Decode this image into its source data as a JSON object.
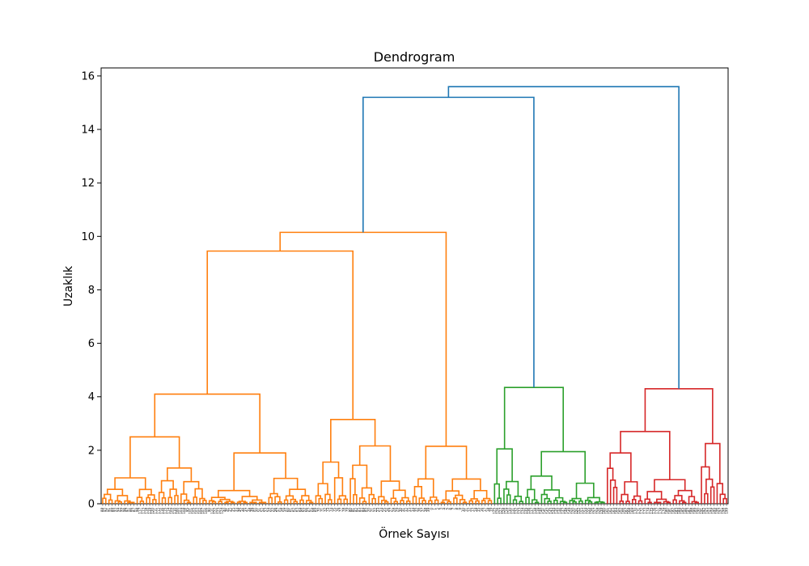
{
  "chart_data": {
    "type": "dendrogram",
    "title": "Dendrogram",
    "xlabel": "Örnek Sayısı",
    "ylabel": "Uzaklık",
    "ylim": [
      0,
      16.3
    ],
    "yticks": [
      0,
      2,
      4,
      6,
      8,
      10,
      12,
      14,
      16
    ],
    "grid": false,
    "leaf_count": 200,
    "colors": {
      "orange": "#ff7f0e",
      "green": "#2ca02c",
      "red": "#d62728",
      "blue": "#1f77b4"
    },
    "clusters": [
      {
        "name": "orange",
        "leaf_range": [
          0,
          124
        ]
      },
      {
        "name": "green",
        "leaf_range": [
          125,
          160
        ]
      },
      {
        "name": "red",
        "leaf_range": [
          161,
          199
        ]
      }
    ],
    "top_merges": [
      {
        "color": "blue",
        "height": 15.6,
        "joins": [
          "orange+green",
          "red"
        ]
      },
      {
        "color": "blue",
        "height": 15.2,
        "joins": [
          "orange",
          "green"
        ]
      },
      {
        "color": "orange",
        "height": 10.15,
        "joins": [
          "orange-left",
          "orange-right"
        ]
      },
      {
        "color": "orange",
        "height": 9.45,
        "joins": [
          "orange-left-a",
          "orange-left-b"
        ]
      },
      {
        "color": "red",
        "height": 4.3,
        "joins": [
          "red-a",
          "red-b"
        ]
      },
      {
        "color": "green",
        "height": 4.35,
        "joins": [
          "green-a",
          "green-b"
        ]
      },
      {
        "color": "orange",
        "height": 4.1,
        "joins": [
          "orange-left-a1",
          "orange-left-a2"
        ]
      },
      {
        "color": "orange",
        "height": 3.15,
        "joins": [
          "orange-mid-a",
          "orange-mid-b"
        ]
      },
      {
        "color": "red",
        "height": 2.7,
        "joins": [
          "red-a1",
          "red-a2"
        ]
      },
      {
        "color": "orange",
        "height": 2.5,
        "joins": [
          "orange-left-a1a",
          "orange-left-a1b"
        ]
      },
      {
        "color": "red",
        "height": 2.25,
        "joins": [
          "red-b1",
          "red-b2"
        ]
      },
      {
        "color": "orange",
        "height": 2.15,
        "joins": [
          "orange-right-a",
          "orange-right-b"
        ]
      },
      {
        "color": "green",
        "height": 2.05,
        "joins": [
          "green-a1",
          "green-a2"
        ]
      },
      {
        "color": "green",
        "height": 1.95,
        "joins": [
          "green-b1",
          "green-b2"
        ]
      },
      {
        "color": "red",
        "height": 1.9,
        "joins": [
          "red-a1a",
          "red-a1b"
        ]
      },
      {
        "color": "orange",
        "height": 1.9,
        "joins": [
          "orange-left-a2a",
          "orange-left-a2b"
        ]
      }
    ],
    "leaf_labels": [
      "88",
      "92",
      "91",
      "89",
      "93",
      "94",
      "99",
      "96",
      "97",
      "86",
      "87",
      "98",
      "117",
      "113",
      "118",
      "119",
      "120",
      "111",
      "112",
      "116",
      "115",
      "114",
      "109",
      "110",
      "100",
      "104",
      "108",
      "95",
      "101",
      "105",
      "103",
      "102",
      "107",
      "106",
      "90",
      "121",
      "122",
      "123",
      "124",
      "40",
      "41",
      "42",
      "43",
      "44",
      "45",
      "46",
      "47",
      "48",
      "49",
      "50",
      "51",
      "52",
      "53",
      "54",
      "55",
      "56",
      "57",
      "58",
      "59",
      "60",
      "61",
      "62",
      "63",
      "64",
      "65",
      "66",
      "67",
      "68",
      "69",
      "70",
      "71",
      "72",
      "73",
      "74",
      "75",
      "76",
      "77",
      "78",
      "79",
      "80",
      "81",
      "82",
      "83",
      "84",
      "85",
      "20",
      "21",
      "22",
      "23",
      "24",
      "25",
      "26",
      "27",
      "28",
      "29",
      "30",
      "31",
      "32",
      "33",
      "34",
      "35",
      "36",
      "37",
      "38",
      "39",
      "0",
      "1",
      "2",
      "3",
      "4",
      "5",
      "6",
      "7",
      "8",
      "9",
      "10",
      "11",
      "12",
      "13",
      "14",
      "15",
      "16",
      "17",
      "18",
      "19",
      "125",
      "126",
      "127",
      "128",
      "129",
      "130",
      "131",
      "132",
      "133",
      "134",
      "135",
      "136",
      "137",
      "138",
      "139",
      "140",
      "141",
      "142",
      "143",
      "144",
      "145",
      "146",
      "147",
      "148",
      "149",
      "150",
      "151",
      "152",
      "153",
      "154",
      "155",
      "156",
      "157",
      "158",
      "159",
      "160",
      "161",
      "162",
      "163",
      "164",
      "165",
      "166",
      "167",
      "168",
      "169",
      "170",
      "171",
      "172",
      "173",
      "174",
      "175",
      "176",
      "177",
      "178",
      "179",
      "180",
      "181",
      "182",
      "183",
      "184",
      "185",
      "186",
      "187",
      "188",
      "189",
      "190",
      "191",
      "192",
      "193",
      "194",
      "195",
      "196",
      "197",
      "198",
      "199"
    ]
  }
}
